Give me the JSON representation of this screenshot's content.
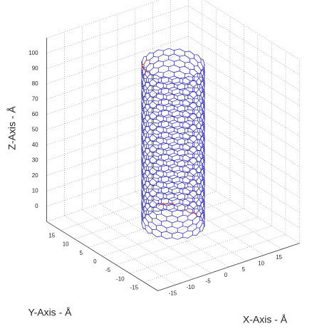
{
  "chart_data": {
    "type": "tube3d",
    "xlabel": "X-Axis - Å",
    "ylabel": "Y-Axis - Å",
    "zlabel": "Z-Axis - Å",
    "xlim": [
      -20,
      20
    ],
    "ylim": [
      -20,
      20
    ],
    "zlim": [
      -10,
      110
    ],
    "xticks": [
      -15,
      -10,
      -5,
      0,
      5,
      10,
      15
    ],
    "yticks": [
      -15,
      -10,
      -5,
      0,
      5,
      10,
      15
    ],
    "zticks": [
      0,
      10,
      20,
      30,
      40,
      50,
      60,
      70,
      80,
      90,
      100
    ],
    "grid": true,
    "tube": {
      "radius": 7,
      "zlim": [
        -5,
        103
      ],
      "color": "#1f1fa8",
      "defect_color": "#d03030"
    }
  }
}
